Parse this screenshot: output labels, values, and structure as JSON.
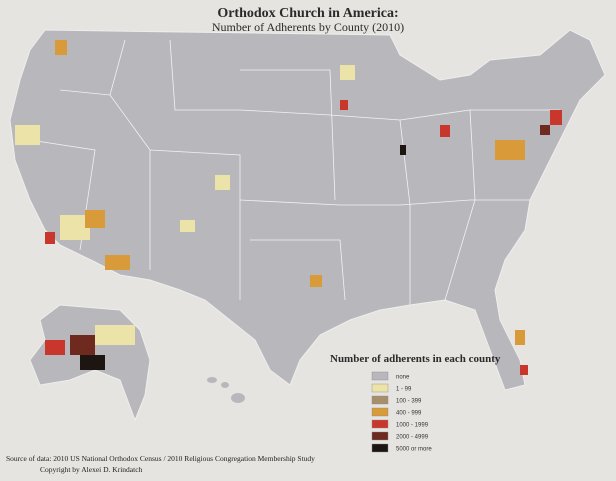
{
  "header": {
    "title": "Orthodox Church in America:",
    "subtitle": "Number of Adherents by County (2010)"
  },
  "legend": {
    "title": "Number of adherents in each county",
    "items": [
      {
        "label": "none",
        "color": "#b8b7bc"
      },
      {
        "label": "1 - 99",
        "color": "#ece3a8"
      },
      {
        "label": "100 - 399",
        "color": "#a98e6c"
      },
      {
        "label": "400 - 999",
        "color": "#d99a3a"
      },
      {
        "label": "1000 - 1999",
        "color": "#c9372c"
      },
      {
        "label": "2000 - 4999",
        "color": "#6e2a1e"
      },
      {
        "label": "5000 or more",
        "color": "#1c1512"
      }
    ]
  },
  "source": {
    "line1": "Source of data: 2010 US National Orthodox Census / 2010 Religious Congregation Membership Study",
    "line2": "Copyright by Alexei D. Krindatch"
  }
}
